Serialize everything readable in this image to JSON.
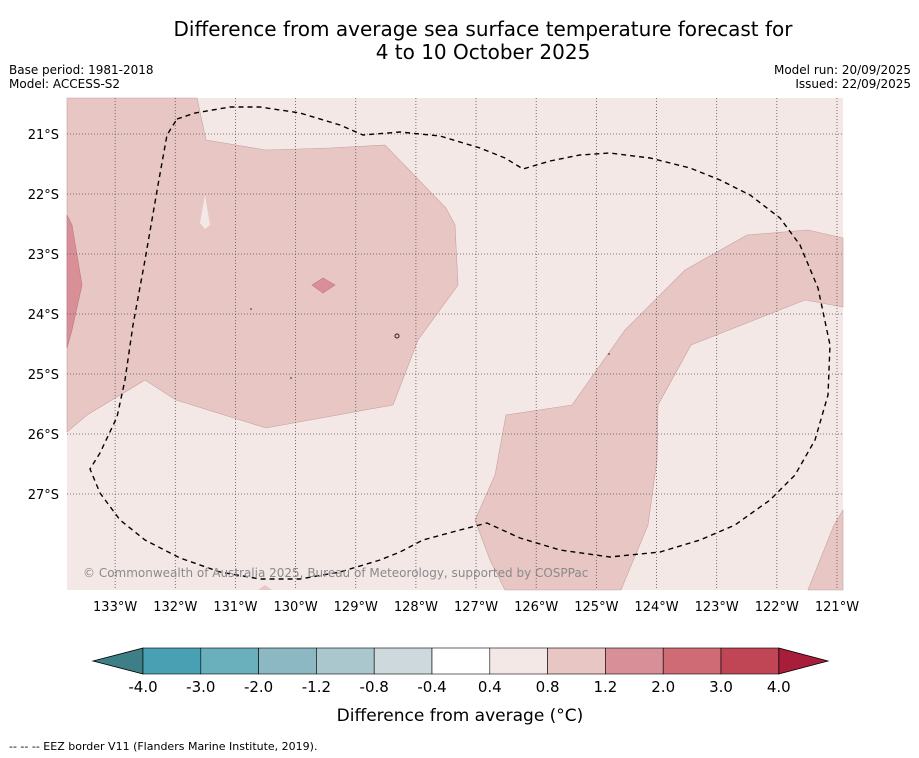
{
  "title_line1": "Difference from average sea surface temperature forecast for",
  "title_line2": "4 to 10 October 2025",
  "meta": {
    "base_period": "Base period: 1981-2018",
    "model": "Model: ACCESS-S2",
    "model_run": "Model run: 20/09/2025",
    "issued": "Issued: 22/09/2025"
  },
  "map": {
    "lon_range": [
      -133.8,
      -120.9
    ],
    "lat_range": [
      -28.6,
      -20.4
    ],
    "lon_ticks": [
      -133,
      -132,
      -131,
      -130,
      -129,
      -128,
      -127,
      -126,
      -125,
      -124,
      -123,
      -122,
      -121
    ],
    "lon_labels": [
      "133°W",
      "132°W",
      "131°W",
      "130°W",
      "129°W",
      "128°W",
      "127°W",
      "126°W",
      "125°W",
      "124°W",
      "123°W",
      "122°W",
      "121°W"
    ],
    "lat_ticks": [
      -21,
      -22,
      -23,
      -24,
      -25,
      -26,
      -27
    ],
    "lat_labels": [
      "21°S",
      "22°S",
      "23°S",
      "24°S",
      "25°S",
      "26°S",
      "27°S"
    ],
    "background_class": "0.4 to 0.8",
    "anomaly_regions": [
      {
        "class": "0.8 to 1.2",
        "name": "north-west-warm-area"
      },
      {
        "class": "0.8 to 1.2",
        "name": "south-east-warm-band"
      },
      {
        "class": "1.2 to 2.0",
        "name": "west-edge-warm-patch"
      },
      {
        "class": "1.2 to 2.0",
        "name": "central-warm-spot"
      }
    ],
    "copyright": "© Commonwealth of Australia 2025, Bureau of Meteorology, supported by COSPPac"
  },
  "colorbar": {
    "label": "Difference from average (°C)",
    "tick_labels": [
      "-4.0",
      "-3.0",
      "-2.0",
      "-1.2",
      "-0.8",
      "-0.4",
      "0.4",
      "0.8",
      "1.2",
      "2.0",
      "3.0",
      "4.0"
    ],
    "colors": {
      "below_min": "#3e7f87",
      "bins": [
        "#48a0b2",
        "#6aafbc",
        "#8bb8c3",
        "#a9c7cc",
        "#cdd9dc",
        "#ffffff",
        "#f4e8e7",
        "#e7c6c3",
        "#d88f98",
        "#cf6b74",
        "#c04555"
      ],
      "above_max": "#a81e3a"
    }
  },
  "footer": "-- -- -- EEZ border V11 (Flanders Marine Institute, 2019)."
}
